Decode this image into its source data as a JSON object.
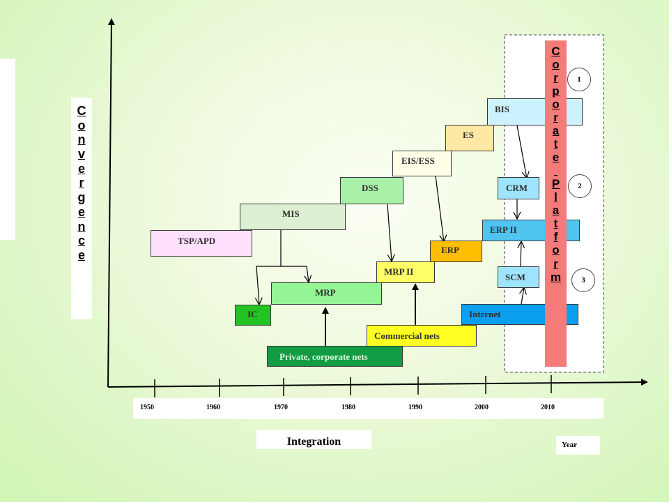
{
  "convergence_label": "Convergence",
  "platform_label": "Corporate Platform",
  "integration_label": "Integration",
  "year_label": "Year",
  "years": [
    "1950",
    "1960",
    "1970",
    "1980",
    "1990",
    "2000",
    "2010"
  ],
  "circles": [
    "1",
    "2",
    "3"
  ],
  "boxes": {
    "tsp": "TSP/APD",
    "mis": "MIS",
    "dss": "DSS",
    "eis": "EIS/ESS",
    "es": "ES",
    "bis": "BIS",
    "crm": "CRM",
    "erp2": "ERP II",
    "erp": "ERP",
    "mrp2": "MRP II",
    "scm": "SCM",
    "mrp": "MRP",
    "ic": "IC",
    "internet": "Internet",
    "commercial": "Commercial nets",
    "private": "Private, corporate nets"
  },
  "colors": {
    "tsp": "#ffe0ff",
    "mis": "#dcefd2",
    "dss": "#a9f0a9",
    "eis": "#ffffe8",
    "es": "#ffe8a4",
    "bis": "#ccf2ff",
    "crm": "#9ee4ff",
    "erp2": "#4ec4ef",
    "erp": "#ffbf00",
    "mrp2": "#ffff66",
    "scm": "#9ee4ff",
    "mrp": "#93f593",
    "ic": "#22c322",
    "internet": "#0aa0ef",
    "commercial": "#ffff22",
    "private": "#119c44",
    "platform": "#f57a7a"
  }
}
